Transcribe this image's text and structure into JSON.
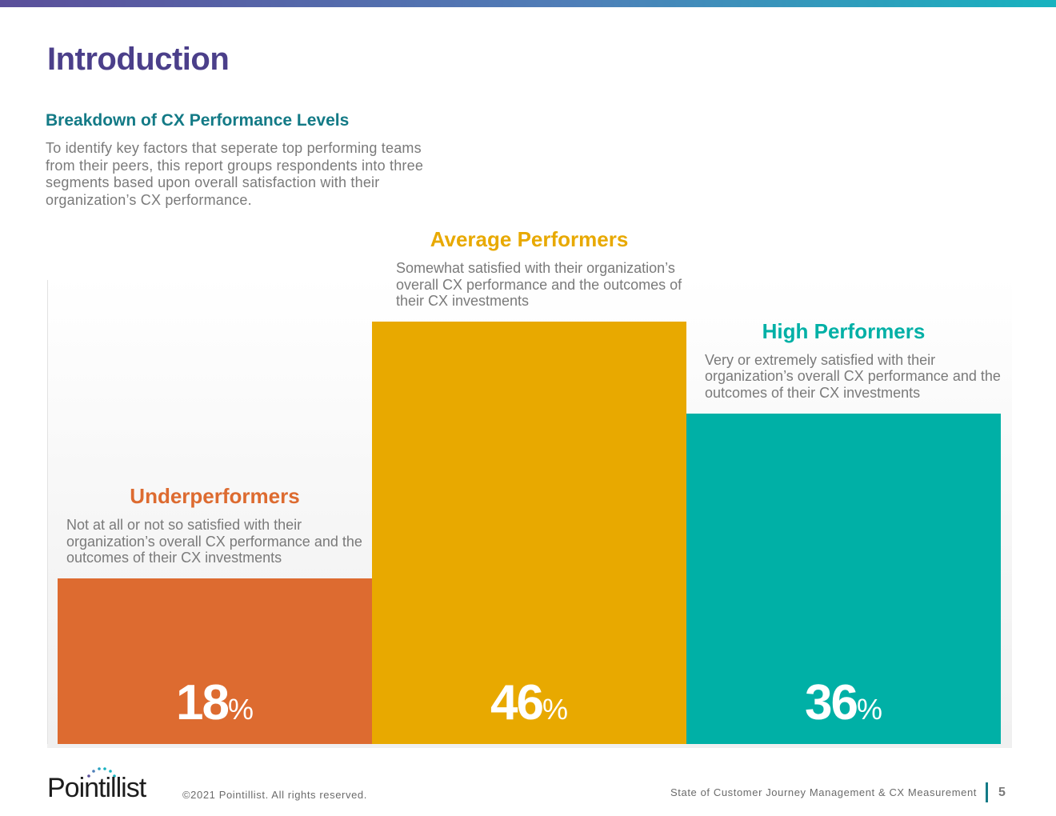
{
  "header": {
    "title": "Introduction"
  },
  "section": {
    "title": "Breakdown of CX Performance Levels",
    "description": "To identify key factors that seperate top performing teams from their peers, this report groups respondents into three segments based upon overall satisfaction with their organization’s CX performance."
  },
  "colors": {
    "underperformers": "#dd6b30",
    "average": "#e8a900",
    "high": "#00b0a6",
    "title": "#4b3f8a",
    "accent": "#137a86"
  },
  "chart_data": {
    "type": "bar",
    "title": "Breakdown of CX Performance Levels",
    "categories": [
      "Underperformers",
      "Average Performers",
      "High Performers"
    ],
    "values": [
      18,
      46,
      36
    ],
    "unit": "%",
    "ylim": [
      0,
      46
    ],
    "descriptions": [
      "Not at all or not so satisfied with their organization’s overall CX performance and the outcomes of their CX investments",
      "Somewhat satisfied with their organization’s overall CX performance and the outcomes of their CX investments",
      "Very or extremely satisfied with their organization’s overall CX performance and the outcomes of their CX investments"
    ],
    "value_labels": [
      "18",
      "46",
      "36"
    ],
    "percent_sign": "%"
  },
  "footer": {
    "logo_text": "Pointillist",
    "copyright": "©2021 Pointillist. All rights reserved.",
    "report_title": "State of Customer Journey Management & CX Measurement",
    "page_number": "5"
  }
}
